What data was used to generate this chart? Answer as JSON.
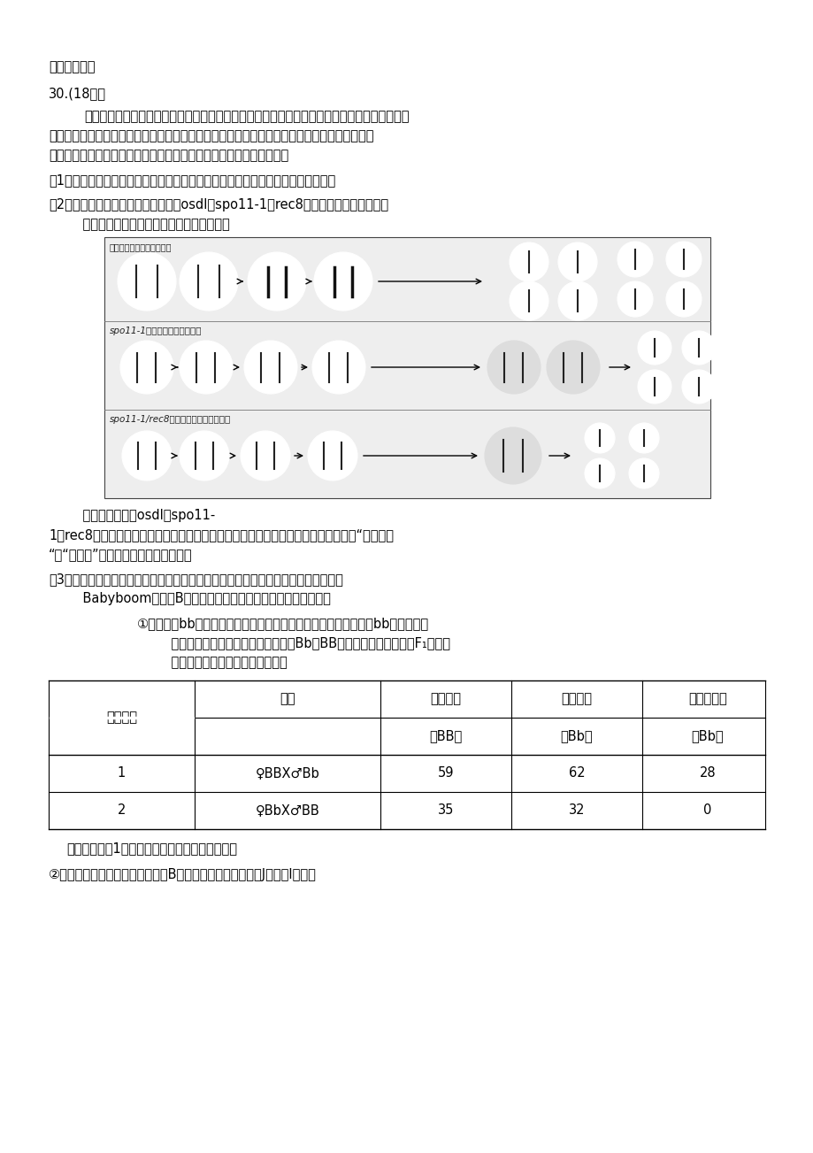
{
  "title_line": "一、丰台一模",
  "question_header": "30.(18分）",
  "para1": "杂种优势是指杂交后代在生活力、抗逆性、适应性和产量等方面优于双亲的现象。但是由于杂种",
  "para2": "的后代会发生性状分离，无法保持杂种优势，农民必须每年购买新的种子。袁隆平团队通过研究",
  "para3": "实现了水稻的无融合生殖（孤雌生殖），使杂种优势的性状得以保持。",
  "q1": "（1）减数分裂过程中，同源染色体须先经过再分离，才能实现染色体的平均分配。",
  "q2_line1": "（2）科学家发现在植物中有三个基因osdl、spo11-1、rec8参与了减数分裂，诱导其",
  "q2_line2": "    突变后，突变体的减数分裂结果如图所示：",
  "after_fig_line1": "    与野生型相比，osdl、spo11-",
  "after_fig_line2": "1、rec8三个基因同时突变的纯合子进行减数分裂，形成的子细胞中染色体组成与（填“生殖细胞",
  "after_fig_line3": "“或“体细胞”）相同。请据图说明原因。",
  "q3_line1": "（3）种子中的胚由受精卵发育而来，胚乳由受精极核发育而来。科学家在水稻中发现",
  "q3_line2": "    Babyboom（简称B）基因在胚的发育启动过程中有重要作用。",
  "c1_line1": "①野生型和bb突变体种子在外观上没有差别，但是显微观察发现，bb突变体的胚",
  "c1_line2": "    发育早期停滞或者只分裂不分化。用Bb和BB进行正反交，将产生的F₁代种子",
  "c1_line3": "    进行萌发实验，结果如下表所示：",
  "thr1": [
    "",
    "子代",
    "萌发种子",
    "萌发种子",
    "未明发种子"
  ],
  "thr2": [
    "亲本组合",
    "",
    "（BB）",
    "（Bb）",
    "（Bb）"
  ],
  "tr1": [
    "1",
    "♀BBX♂Bb",
    "59",
    "62",
    "28"
  ],
  "tr2": [
    "2",
    "♀BbX♂BB",
    "35",
    "32",
    "0"
  ],
  "after_table": "推测杂交组合1子代中部分种子不萌发的原因：。",
  "last_line": "②为了进一步验证上述推测，选取B基因存在个别碱基差异的J品系和I品系进",
  "img_label_row1": "野生型减数分裂结果示意图",
  "img_label_row2": "spo11-1突变体的减数分裂结果",
  "img_label_row3": "spo11-1/rec8双突变体的减数分裂结果",
  "bg_color": "#ffffff",
  "text_color": "#000000",
  "fs": 10.5
}
